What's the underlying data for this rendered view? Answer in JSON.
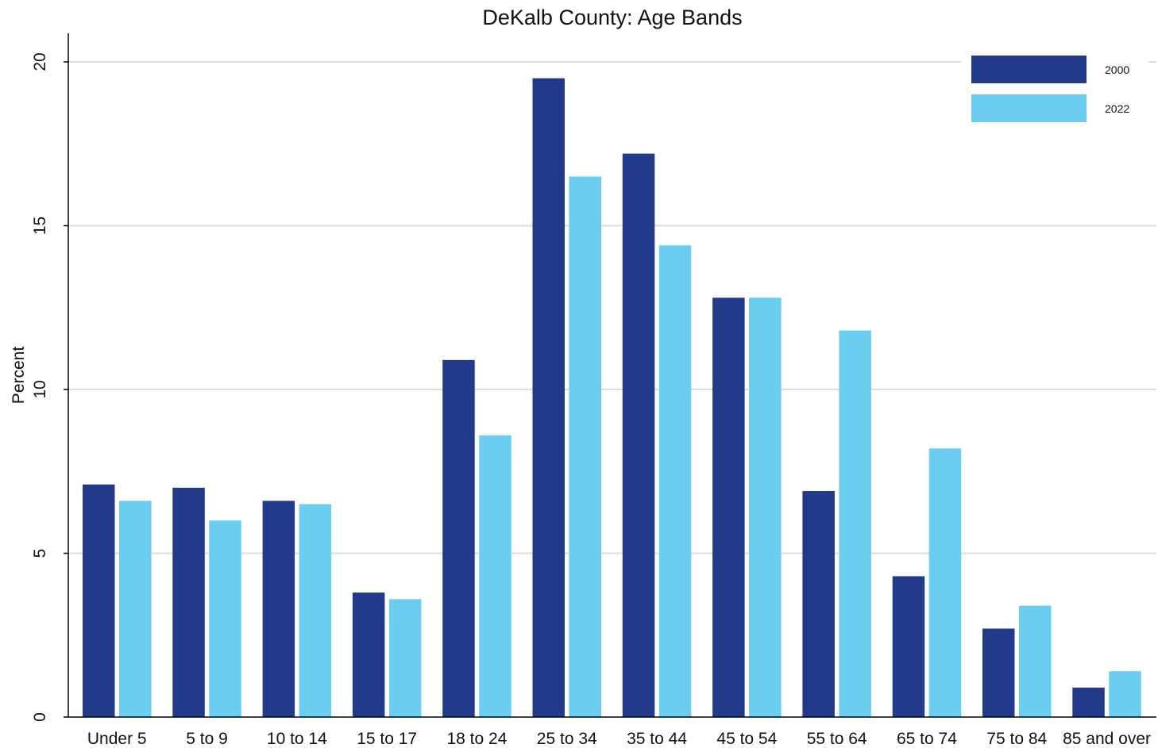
{
  "chart_data": {
    "type": "bar",
    "title": "DeKalb County: Age Bands",
    "xlabel": "",
    "ylabel": "Percent",
    "ylim": [
      0,
      21
    ],
    "yticks": [
      0,
      5,
      10,
      15,
      20
    ],
    "grid": true,
    "legend_position": "top-right",
    "categories": [
      "Under 5",
      "5 to 9",
      "10 to 14",
      "15 to 17",
      "18 to 24",
      "25 to 34",
      "35 to 44",
      "45 to 54",
      "55 to 64",
      "65 to 74",
      "75 to 84",
      "85 and over"
    ],
    "series": [
      {
        "name": "2000",
        "color": "#213a8a",
        "values": [
          7.1,
          7.0,
          6.6,
          3.8,
          10.9,
          19.5,
          17.2,
          12.8,
          6.9,
          4.3,
          2.7,
          0.9
        ]
      },
      {
        "name": "2022",
        "color": "#6bcef0",
        "values": [
          6.6,
          6.0,
          6.5,
          3.6,
          8.6,
          16.5,
          14.4,
          12.8,
          11.8,
          8.2,
          3.4,
          1.4
        ]
      }
    ]
  }
}
